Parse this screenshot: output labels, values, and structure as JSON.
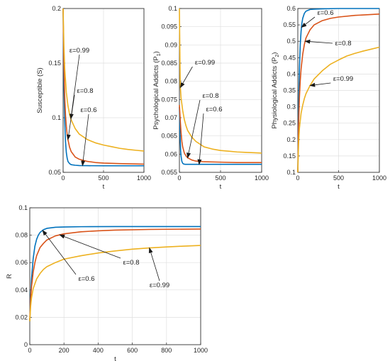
{
  "chart_data": [
    {
      "type": "line",
      "xlabel": "t",
      "ylabel": "Susceptible (S)",
      "xlim": [
        0,
        1000
      ],
      "ylim": [
        0.05,
        0.2
      ],
      "xticks": [
        "0",
        "500",
        "1000"
      ],
      "yticks": [
        "0.05",
        "0.1",
        "0.15",
        "0.2"
      ],
      "grid": true,
      "series": [
        {
          "name": "ε=0.6",
          "color": "#0072BD",
          "x": [
            0,
            5,
            10,
            20,
            30,
            40,
            50,
            60,
            80,
            100,
            150,
            200,
            300,
            500,
            700,
            1000
          ],
          "y": [
            0.2,
            0.16,
            0.13,
            0.097,
            0.078,
            0.068,
            0.063,
            0.06,
            0.058,
            0.057,
            0.0565,
            0.0562,
            0.0561,
            0.056,
            0.056,
            0.056
          ]
        },
        {
          "name": "ε=0.8",
          "color": "#D95319",
          "x": [
            0,
            5,
            10,
            20,
            30,
            40,
            50,
            60,
            80,
            100,
            150,
            200,
            300,
            400,
            500,
            700,
            1000
          ],
          "y": [
            0.2,
            0.17,
            0.147,
            0.119,
            0.102,
            0.092,
            0.085,
            0.08,
            0.073,
            0.069,
            0.064,
            0.062,
            0.06,
            0.059,
            0.0585,
            0.058,
            0.0575
          ]
        },
        {
          "name": "ε=0.99",
          "color": "#EDB120",
          "x": [
            0,
            10,
            20,
            40,
            60,
            80,
            100,
            150,
            200,
            300,
            400,
            500,
            600,
            700,
            800,
            900,
            1000
          ],
          "y": [
            0.2,
            0.165,
            0.145,
            0.123,
            0.111,
            0.103,
            0.098,
            0.09,
            0.085,
            0.08,
            0.077,
            0.075,
            0.0735,
            0.072,
            0.071,
            0.0702,
            0.0695
          ]
        }
      ],
      "annotations": [
        {
          "text": "ε=0.99",
          "series": 2
        },
        {
          "text": "ε=0.8",
          "series": 1
        },
        {
          "text": "ε=0.6",
          "series": 0
        }
      ]
    },
    {
      "type": "line",
      "xlabel": "t",
      "ylabel": "Psychological Addicts (P",
      "ylabel_sub": "1",
      "ylabel_tail": ")",
      "xlim": [
        0,
        1000
      ],
      "ylim": [
        0.055,
        0.1
      ],
      "xticks": [
        "0",
        "500",
        "1000"
      ],
      "yticks": [
        "0.055",
        "0.06",
        "0.065",
        "0.07",
        "0.075",
        "0.08",
        "0.085",
        "0.09",
        "0.095",
        "0.1"
      ],
      "grid": true,
      "series": [
        {
          "name": "ε=0.6",
          "color": "#0072BD",
          "x": [
            0,
            5,
            10,
            15,
            20,
            30,
            40,
            50,
            70,
            100,
            150,
            200,
            300,
            500,
            1000
          ],
          "y": [
            0.073,
            0.068,
            0.064,
            0.061,
            0.0595,
            0.058,
            0.0575,
            0.0573,
            0.0572,
            0.0572,
            0.0572,
            0.0572,
            0.0572,
            0.0572,
            0.0572
          ]
        },
        {
          "name": "ε=0.8",
          "color": "#D95319",
          "x": [
            0,
            10,
            20,
            30,
            40,
            60,
            80,
            100,
            150,
            200,
            300,
            500,
            700,
            1000
          ],
          "y": [
            0.0735,
            0.0695,
            0.066,
            0.0635,
            0.062,
            0.0603,
            0.0595,
            0.059,
            0.0584,
            0.0581,
            0.0579,
            0.0578,
            0.0577,
            0.0577
          ]
        },
        {
          "name": "ε=0.99",
          "color": "#EDB120",
          "x": [
            0,
            10,
            20,
            40,
            60,
            80,
            100,
            150,
            200,
            300,
            400,
            500,
            600,
            700,
            800,
            900,
            1000
          ],
          "y": [
            0.1,
            0.079,
            0.0755,
            0.072,
            0.0695,
            0.0678,
            0.0665,
            0.0647,
            0.0635,
            0.062,
            0.0614,
            0.061,
            0.0608,
            0.0606,
            0.0605,
            0.0604,
            0.0603
          ]
        }
      ],
      "annotations": [
        {
          "text": "ε=0.99",
          "series": 2
        },
        {
          "text": "ε=0.8",
          "series": 1
        },
        {
          "text": "ε=0.6",
          "series": 0
        }
      ]
    },
    {
      "type": "line",
      "xlabel": "t",
      "ylabel": "Physiological Addicts (P",
      "ylabel_sub": "2",
      "ylabel_tail": ")",
      "xlim": [
        0,
        1000
      ],
      "ylim": [
        0.1,
        0.6
      ],
      "xticks": [
        "0",
        "500",
        "1000"
      ],
      "yticks": [
        "0.1",
        "0.15",
        "0.2",
        "0.25",
        "0.3",
        "0.35",
        "0.4",
        "0.45",
        "0.5",
        "0.55",
        "0.6"
      ],
      "grid": true,
      "series": [
        {
          "name": "ε=0.6",
          "color": "#0072BD",
          "x": [
            0,
            5,
            10,
            20,
            30,
            40,
            50,
            60,
            80,
            100,
            150,
            200,
            300,
            500,
            1000
          ],
          "y": [
            0.1,
            0.2,
            0.3,
            0.42,
            0.49,
            0.53,
            0.555,
            0.57,
            0.585,
            0.592,
            0.597,
            0.598,
            0.599,
            0.6,
            0.6
          ]
        },
        {
          "name": "ε=0.8",
          "color": "#D95319",
          "x": [
            0,
            5,
            10,
            20,
            30,
            40,
            60,
            80,
            100,
            150,
            200,
            300,
            400,
            500,
            700,
            1000
          ],
          "y": [
            0.1,
            0.18,
            0.25,
            0.33,
            0.38,
            0.415,
            0.46,
            0.49,
            0.51,
            0.535,
            0.55,
            0.563,
            0.57,
            0.574,
            0.579,
            0.583
          ]
        },
        {
          "name": "ε=0.99",
          "color": "#EDB120",
          "x": [
            0,
            5,
            10,
            20,
            40,
            60,
            80,
            100,
            150,
            200,
            300,
            400,
            500,
            600,
            700,
            800,
            900,
            1000
          ],
          "y": [
            0.1,
            0.15,
            0.19,
            0.235,
            0.28,
            0.305,
            0.325,
            0.34,
            0.365,
            0.385,
            0.41,
            0.43,
            0.443,
            0.455,
            0.463,
            0.47,
            0.476,
            0.482
          ]
        }
      ],
      "annotations": [
        {
          "text": "ε=0.6",
          "series": 0
        },
        {
          "text": "ε=0.8",
          "series": 1
        },
        {
          "text": "ε=0.99",
          "series": 2
        }
      ]
    },
    {
      "type": "line",
      "xlabel": "t",
      "ylabel": "R",
      "xlim": [
        0,
        1000
      ],
      "ylim": [
        0,
        0.1
      ],
      "xticks": [
        "0",
        "200",
        "400",
        "600",
        "800",
        "1000"
      ],
      "yticks": [
        "0",
        "0.02",
        "0.04",
        "0.06",
        "0.08",
        "0.1"
      ],
      "grid": true,
      "series": [
        {
          "name": "ε=0.6",
          "color": "#0072BD",
          "x": [
            0,
            5,
            10,
            20,
            30,
            40,
            50,
            60,
            80,
            100,
            150,
            200,
            300,
            500,
            1000
          ],
          "y": [
            0.017,
            0.035,
            0.048,
            0.063,
            0.072,
            0.077,
            0.08,
            0.082,
            0.084,
            0.085,
            0.0858,
            0.086,
            0.0862,
            0.0863,
            0.0863
          ]
        },
        {
          "name": "ε=0.8",
          "color": "#D95319",
          "x": [
            0,
            5,
            10,
            20,
            30,
            40,
            60,
            80,
            100,
            150,
            200,
            300,
            400,
            500,
            700,
            1000
          ],
          "y": [
            0.018,
            0.033,
            0.042,
            0.053,
            0.06,
            0.065,
            0.071,
            0.074,
            0.0765,
            0.0795,
            0.081,
            0.0825,
            0.0832,
            0.0837,
            0.0842,
            0.0845
          ]
        },
        {
          "name": "ε=0.99",
          "color": "#EDB120",
          "x": [
            0,
            5,
            10,
            20,
            40,
            60,
            80,
            100,
            150,
            200,
            300,
            400,
            500,
            600,
            700,
            800,
            900,
            1000
          ],
          "y": [
            0.017,
            0.028,
            0.034,
            0.041,
            0.048,
            0.052,
            0.055,
            0.057,
            0.06,
            0.0625,
            0.065,
            0.067,
            0.0685,
            0.0698,
            0.0707,
            0.0714,
            0.072,
            0.0725
          ]
        }
      ],
      "annotations": [
        {
          "text": "ε=0.6",
          "series": 0
        },
        {
          "text": "ε=0.8",
          "series": 1
        },
        {
          "text": "ε=0.99",
          "series": 2
        }
      ]
    }
  ]
}
